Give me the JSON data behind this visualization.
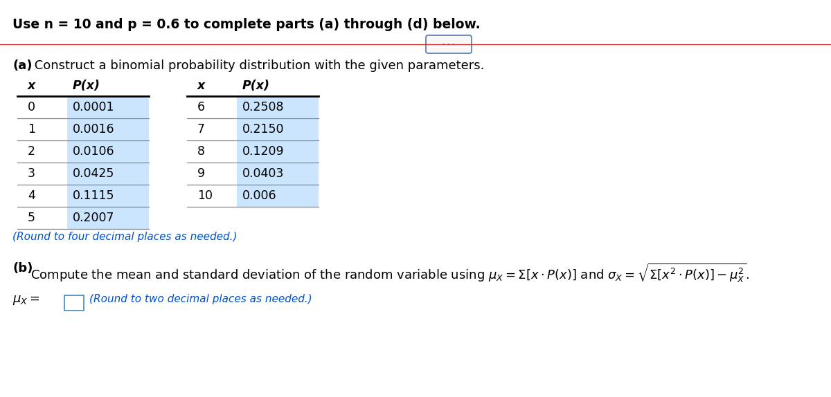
{
  "title_line": "Use n = 10 and p = 0.6 to complete parts (a) through (d) below.",
  "part_a_label_bold": "(a)",
  "part_a_label_rest": " Construct a binomial probability distribution with the given parameters.",
  "part_b_label_bold": "(b)",
  "part_b_label_rest": " Compute the mean and standard deviation of the random variable using ",
  "round_note_a": "(Round to four decimal places as needed.)",
  "round_note_b": "(Round to two decimal places as needed.)",
  "table_left": {
    "headers": [
      "x",
      "P(x)"
    ],
    "rows": [
      [
        0,
        "0.0001"
      ],
      [
        1,
        "0.0016"
      ],
      [
        2,
        "0.0106"
      ],
      [
        3,
        "0.0425"
      ],
      [
        4,
        "0.1115"
      ],
      [
        5,
        "0.2007"
      ]
    ]
  },
  "table_right": {
    "headers": [
      "x",
      "P(x)"
    ],
    "rows": [
      [
        6,
        "0.2508"
      ],
      [
        7,
        "0.2150"
      ],
      [
        8,
        "0.1209"
      ],
      [
        9,
        "0.0403"
      ],
      [
        10,
        "0.006"
      ]
    ]
  },
  "bg_color": "#ffffff",
  "text_color": "#000000",
  "blue_cell_color": "#cce5ff",
  "blue_text_color": "#0050c8",
  "line_color_header": "#000000",
  "line_color_row": "#999999",
  "btn_line_color": "#cc3333",
  "font_size_title": 13.5,
  "font_size_body": 13,
  "font_size_table": 12.5,
  "font_size_note": 11
}
